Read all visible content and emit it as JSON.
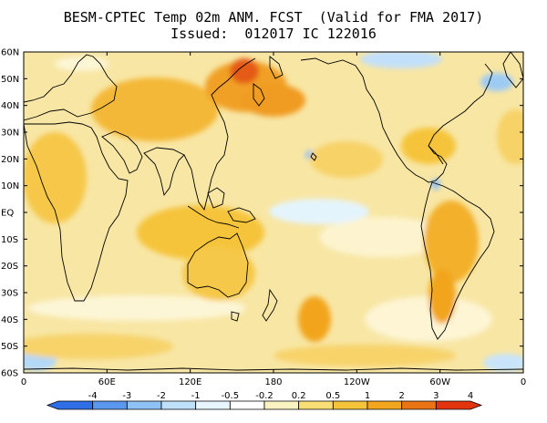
{
  "title": {
    "line1": "BESM-CPTEC Temp 02m ANM. FCST  (Valid for FMA 2017)",
    "line2": "Issued:  012017 IC 122016"
  },
  "map": {
    "lat_labels": [
      "60N",
      "50N",
      "40N",
      "30N",
      "20N",
      "10N",
      "EQ",
      "10S",
      "20S",
      "30S",
      "40S",
      "50S",
      "60S"
    ],
    "lon_labels": [
      "0",
      "60E",
      "120E",
      "180",
      "120W",
      "60W",
      "0"
    ],
    "background_color": "#f8e6a4"
  },
  "colorbar": {
    "labels": [
      "-4",
      "-3",
      "-2",
      "-1",
      "-0.5",
      "-0.2",
      "0.2",
      "0.5",
      "1",
      "2",
      "3",
      "4"
    ],
    "colors": [
      "#2f6ee6",
      "#5a97ee",
      "#8ec1f5",
      "#bfe0fb",
      "#e7f6fe",
      "#ffffff",
      "#fbf2c2",
      "#f8de74",
      "#f5c43a",
      "#f2a51e",
      "#ea7414",
      "#e1330d"
    ]
  }
}
